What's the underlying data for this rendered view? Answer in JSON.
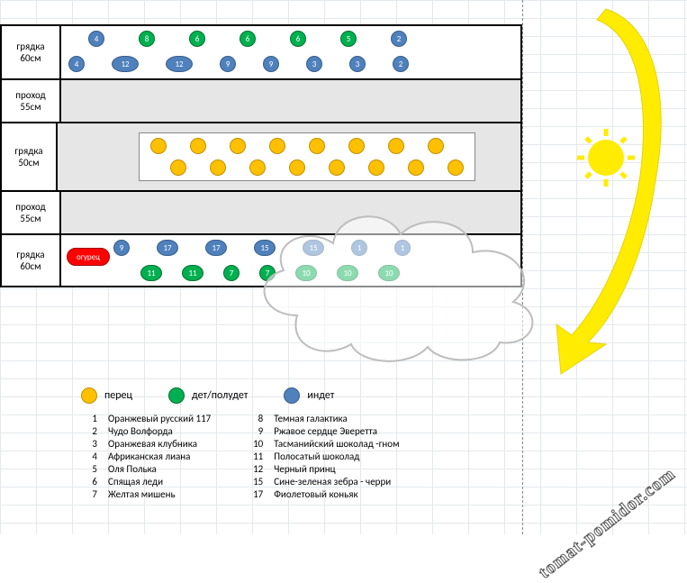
{
  "colors": {
    "blue": "#4f81bd",
    "green": "#00b050",
    "orange": "#ffc000",
    "red": "#ff0000",
    "aisle_bg": "#e6e6e6",
    "grid": "#d0d7de",
    "border": "#000000",
    "arrow": "#ffec00",
    "sun": "#ffec00"
  },
  "rows": [
    {
      "key": "bed1",
      "name": "грядка",
      "size": "60см",
      "type": "bed",
      "lines": [
        {
          "offset": 30,
          "gap": 38,
          "markers": [
            {
              "c": "blue",
              "sz": "s",
              "n": "4"
            },
            {
              "c": "green",
              "sz": "s",
              "n": "8"
            },
            {
              "c": "green",
              "sz": "s",
              "n": "6"
            },
            {
              "c": "green",
              "sz": "s",
              "n": "6"
            },
            {
              "c": "green",
              "sz": "s",
              "n": "6"
            },
            {
              "c": "green",
              "sz": "s",
              "n": "5"
            },
            {
              "c": "blue",
              "sz": "s",
              "n": "2"
            }
          ]
        },
        {
          "offset": 8,
          "gap": 30,
          "markers": [
            {
              "c": "blue",
              "sz": "s",
              "n": "4"
            },
            {
              "c": "blue",
              "sz": "l",
              "n": "12"
            },
            {
              "c": "blue",
              "sz": "l",
              "n": "12"
            },
            {
              "c": "blue",
              "sz": "s",
              "n": "9"
            },
            {
              "c": "blue",
              "sz": "s",
              "n": "9"
            },
            {
              "c": "blue",
              "sz": "s",
              "n": "3"
            },
            {
              "c": "blue",
              "sz": "s",
              "n": "3"
            },
            {
              "c": "blue",
              "sz": "s",
              "n": "2"
            }
          ]
        }
      ]
    },
    {
      "key": "aisle1",
      "name": "проход",
      "size": "55см",
      "type": "aisle",
      "lines": []
    },
    {
      "key": "bed2",
      "name": "грядка",
      "size": "50см",
      "type": "aisle",
      "pepper_rows": [
        [
          1,
          1,
          1,
          1,
          1,
          1,
          1,
          1
        ],
        [
          1,
          1,
          1,
          1,
          1,
          1,
          1,
          1
        ]
      ]
    },
    {
      "key": "aisle2",
      "name": "проход",
      "size": "55см",
      "type": "aisle",
      "lines": []
    },
    {
      "key": "bed3",
      "name": "грядка",
      "size": "60см",
      "type": "bed",
      "cucumber_label": "огурец",
      "lines": [
        {
          "offset": 58,
          "gap": 30,
          "markers": [
            {
              "c": "blue",
              "sz": "s",
              "n": "9"
            },
            {
              "c": "blue",
              "sz": "m",
              "n": "17"
            },
            {
              "c": "blue",
              "sz": "m",
              "n": "17"
            },
            {
              "c": "blue",
              "sz": "m",
              "n": "15"
            },
            {
              "c": "blue",
              "sz": "m",
              "n": "15"
            },
            {
              "c": "blue",
              "sz": "s",
              "n": "1"
            },
            {
              "c": "blue",
              "sz": "s",
              "n": "1"
            }
          ]
        },
        {
          "offset": 88,
          "gap": 22,
          "markers": [
            {
              "c": "green",
              "sz": "m",
              "n": "11"
            },
            {
              "c": "green",
              "sz": "m",
              "n": "11"
            },
            {
              "c": "green",
              "sz": "s",
              "n": "7"
            },
            {
              "c": "green",
              "sz": "s",
              "n": "7"
            },
            {
              "c": "green",
              "sz": "m",
              "n": "10"
            },
            {
              "c": "green",
              "sz": "m",
              "n": "10"
            },
            {
              "c": "green",
              "sz": "m",
              "n": "10"
            }
          ]
        }
      ]
    }
  ],
  "legend": [
    {
      "color": "orange",
      "label": "перец"
    },
    {
      "color": "green",
      "label": "дет/полудет"
    },
    {
      "color": "blue",
      "label": "индет"
    }
  ],
  "varieties_left": [
    {
      "n": "1",
      "t": "Оранжевый русский 117"
    },
    {
      "n": "2",
      "t": "Чудо Волфорда"
    },
    {
      "n": "3",
      "t": "Оранжевая клубника"
    },
    {
      "n": "4",
      "t": "Африканская лиана"
    },
    {
      "n": "5",
      "t": "Оля Полька"
    },
    {
      "n": "6",
      "t": "Спящая леди"
    },
    {
      "n": "7",
      "t": "Желтая мишень"
    }
  ],
  "varieties_right": [
    {
      "n": "8",
      "t": "Темная галактика"
    },
    {
      "n": "9",
      "t": "Ржавое сердце Эверетта"
    },
    {
      "n": "10",
      "t": "Тасманийский шоколад -гном"
    },
    {
      "n": "11",
      "t": "Полосатый шоколад"
    },
    {
      "n": "12",
      "t": "Черный принц"
    },
    {
      "n": "15",
      "t": "Сине-зеленая зебра - черри"
    },
    {
      "n": "17",
      "t": "Фиолетовый коньяк"
    }
  ],
  "watermark": "tomat-pomidor.com"
}
